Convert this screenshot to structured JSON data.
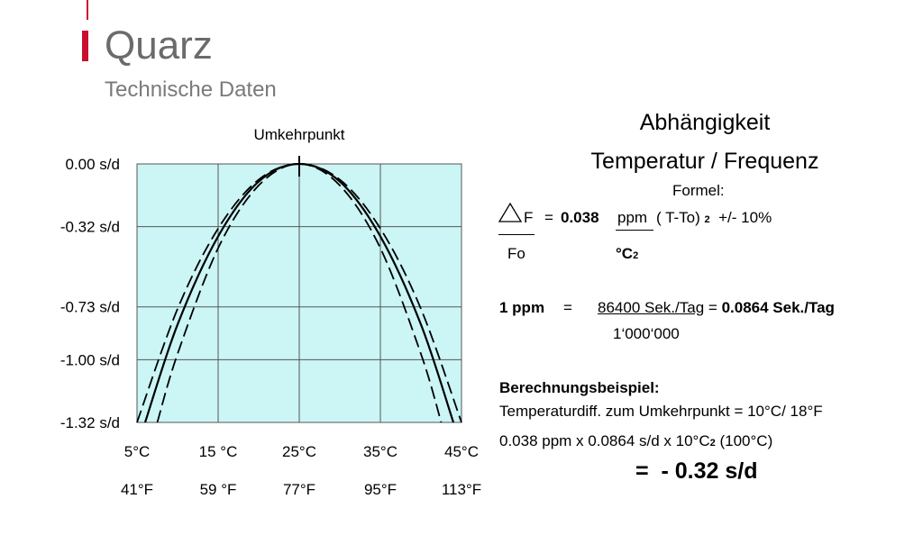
{
  "header": {
    "title": "Quarz",
    "subtitle": "Technische Daten"
  },
  "chart_data": {
    "type": "line",
    "annotation": "Umkehrpunkt",
    "annotation_x": 25,
    "annotation_y": 0,
    "background": "#ccf5f5",
    "grid": true,
    "xlim": [
      5,
      45
    ],
    "xticks": [
      {
        "value": 5,
        "label": "5°C"
      },
      {
        "value": 15,
        "label": "15 °C"
      },
      {
        "value": 25,
        "label": "25°C"
      },
      {
        "value": 35,
        "label": "35°C"
      },
      {
        "value": 45,
        "label": "45°C"
      }
    ],
    "xticks_fahrenheit": [
      {
        "value": 5,
        "label": "41°F"
      },
      {
        "value": 15,
        "label": "59 °F"
      },
      {
        "value": 25,
        "label": "77°F"
      },
      {
        "value": 35,
        "label": "95°F"
      },
      {
        "value": 45,
        "label": "113°F"
      }
    ],
    "ylim": [
      -1.32,
      0
    ],
    "yticks": [
      {
        "value": 0,
        "label": "0.00 s/d"
      },
      {
        "value": -0.32,
        "label": "-0.32 s/d"
      },
      {
        "value": -0.73,
        "label": "-0.73 s/d"
      },
      {
        "value": -1.0,
        "label": "-1.00 s/d"
      },
      {
        "value": -1.32,
        "label": "-1.32 s/d"
      }
    ],
    "series": [
      {
        "color": "#000000",
        "dashed": true,
        "x": [
          5,
          10,
          15,
          20,
          25,
          30,
          35,
          40,
          45
        ],
        "values": [
          -1.32,
          -0.74,
          -0.33,
          -0.08,
          0,
          -0.08,
          -0.33,
          -0.74,
          -1.32
        ]
      },
      {
        "color": "#000000",
        "dashed": false,
        "x": [
          6,
          10,
          15,
          20,
          25,
          30,
          35,
          40,
          44
        ],
        "values": [
          -1.32,
          -0.82,
          -0.37,
          -0.09,
          0,
          -0.09,
          -0.37,
          -0.82,
          -1.32
        ]
      },
      {
        "color": "#000000",
        "dashed": true,
        "x": [
          7.5,
          10,
          15,
          20,
          25,
          30,
          35,
          40,
          42.5
        ],
        "values": [
          -1.32,
          -0.97,
          -0.43,
          -0.11,
          0,
          -0.11,
          -0.43,
          -0.97,
          -1.32
        ]
      }
    ]
  },
  "formula": {
    "heading1": "Abhängigkeit",
    "heading2": "Temperatur / Frequenz",
    "label": "Formel:",
    "numerator": "F",
    "equals": "=",
    "coefficient": "0.038",
    "unit_numerator": "ppm",
    "term": "( T-To)",
    "exponent": "2",
    "tolerance": "+/- 10%",
    "denominator": "Fo",
    "unit_denominator": "°C",
    "unit_denominator_exp": "2"
  },
  "ppm": {
    "lhs": "1 ppm",
    "equals": "=",
    "numerator": "86400 Sek./Tag",
    "equals2": "=",
    "result": "0.0864 Sek./Tag",
    "denominator": "1‘000‘000"
  },
  "example": {
    "heading": "Berechnungsbeispiel:",
    "line1": "Temperaturdiff. zum Umkehrpunkt = 10°C/ 18°F",
    "line2": "0.038 ppm x 0.0864 s/d x 10°C",
    "line2_exp": "2",
    "line2_rest": "(100°C)",
    "result": "=  - 0.32 s/d"
  }
}
